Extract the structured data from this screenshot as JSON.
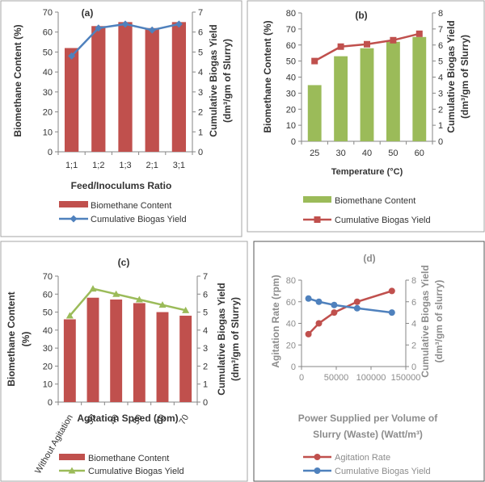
{
  "chart_data": [
    {
      "id": "a",
      "panel_label": "(a)",
      "type": "bar+line",
      "categories": [
        "1;1",
        "1;2",
        "1;3",
        "2;1",
        "3;1"
      ],
      "xlabel": "Feed/Inoculums Ratio",
      "ylabel_left": "Biomethane Content (%)",
      "ylabel_right_line1": "Cumulative Biogas Yield",
      "ylabel_right_line2": "(dm³/gm of Slurry)",
      "ylim_left": [
        0,
        70
      ],
      "yticks_left": [
        "0",
        "10",
        "20",
        "30",
        "40",
        "50",
        "60",
        "70"
      ],
      "ylim_right": [
        0,
        7
      ],
      "yticks_right": [
        "0",
        "1",
        "2",
        "3",
        "4",
        "5",
        "6",
        "7"
      ],
      "series": [
        {
          "name": "Biomethane Content",
          "kind": "bar",
          "axis": "left",
          "color": "#c0504d",
          "values": [
            52,
            63,
            65,
            62,
            65
          ]
        },
        {
          "name": "Cumulative Biogas Yield",
          "kind": "line",
          "marker": "diamond",
          "axis": "right",
          "color": "#4f81bd",
          "values": [
            4.8,
            6.2,
            6.4,
            6.1,
            6.4
          ]
        }
      ],
      "legend": "bottom"
    },
    {
      "id": "b",
      "panel_label": "(b)",
      "type": "bar+line",
      "categories": [
        "25",
        "30",
        "40",
        "50",
        "60"
      ],
      "xlabel": "Temperature (°C)",
      "ylabel_left": "Biomethane Content (%)",
      "ylabel_right_line1": "Cumulative Biogas Yield",
      "ylabel_right_line2": "(dm³/gm of Slurry)",
      "ylim_left": [
        0,
        80
      ],
      "yticks_left": [
        "0",
        "10",
        "20",
        "30",
        "40",
        "50",
        "60",
        "70",
        "80"
      ],
      "ylim_right": [
        0,
        8
      ],
      "yticks_right": [
        "0",
        "1",
        "2",
        "3",
        "4",
        "5",
        "6",
        "7",
        "8"
      ],
      "series": [
        {
          "name": "Biomethane Content",
          "kind": "bar",
          "axis": "left",
          "color": "#9bbb59",
          "values": [
            35,
            53,
            58,
            62,
            65
          ]
        },
        {
          "name": "Cumulative Biogas Yield",
          "kind": "line",
          "marker": "square",
          "axis": "right",
          "color": "#c0504d",
          "values": [
            5.0,
            5.9,
            6.05,
            6.3,
            6.7
          ]
        }
      ],
      "legend": "bottom"
    },
    {
      "id": "c",
      "panel_label": "(c)",
      "type": "bar+line",
      "categories": [
        "Without Agitation",
        "30",
        "40",
        "50",
        "60",
        "70"
      ],
      "xlabel": "Agitation Speed (rpm)",
      "ylabel_left_line1": "Biomethane Content",
      "ylabel_left_line2": "(%)",
      "ylabel_right_line1": "Cumulative Biogas Yield",
      "ylabel_right_line2": "(dm³/gm of Slurry)",
      "ylim_left": [
        0,
        70
      ],
      "yticks_left": [
        "0",
        "10",
        "20",
        "30",
        "40",
        "50",
        "60",
        "70"
      ],
      "ylim_right": [
        0,
        7
      ],
      "yticks_right": [
        "0",
        "1",
        "2",
        "3",
        "4",
        "5",
        "6",
        "7"
      ],
      "series": [
        {
          "name": "Biomethane Content",
          "kind": "bar",
          "axis": "left",
          "color": "#c0504d",
          "values": [
            46,
            58,
            57,
            55,
            50,
            48
          ]
        },
        {
          "name": "Cumulative Biogas Yield",
          "kind": "line",
          "marker": "triangle",
          "axis": "right",
          "color": "#9bbb59",
          "values": [
            4.8,
            6.3,
            6.0,
            5.7,
            5.4,
            5.1
          ]
        }
      ],
      "legend": "bottom"
    },
    {
      "id": "d",
      "panel_label": "(d)",
      "type": "line",
      "xlabel_line1": "Power Supplied per Volume of",
      "xlabel_line2": "Slurry (Waste) (Watt/m³)",
      "ylabel_left": "Agitation Rate (rpm)",
      "ylabel_right_line1": "Cumulative Biogas Yield",
      "ylabel_right_line2": "(dm³/gm of slurry)",
      "xlim": [
        0,
        150000
      ],
      "xticks": [
        "0",
        "50000",
        "100000",
        "150000"
      ],
      "ylim_left": [
        0,
        80
      ],
      "yticks_left": [
        "0",
        "20",
        "40",
        "60",
        "80"
      ],
      "ylim_right": [
        0,
        8
      ],
      "yticks_right": [
        "0",
        "2",
        "4",
        "6",
        "8"
      ],
      "series": [
        {
          "name": "Agitation Rate",
          "axis": "left",
          "marker": "circle",
          "color": "#c0504d",
          "x": [
            10000,
            25000,
            47000,
            80000,
            130000
          ],
          "values": [
            30,
            40,
            50,
            60,
            70
          ]
        },
        {
          "name": "Cumulative Biogas Yield",
          "axis": "right",
          "marker": "circle",
          "color": "#4f81bd",
          "x": [
            10000,
            25000,
            47000,
            80000,
            130000
          ],
          "values": [
            6.3,
            6.0,
            5.7,
            5.4,
            5.0
          ]
        }
      ],
      "legend": "bottom"
    }
  ]
}
